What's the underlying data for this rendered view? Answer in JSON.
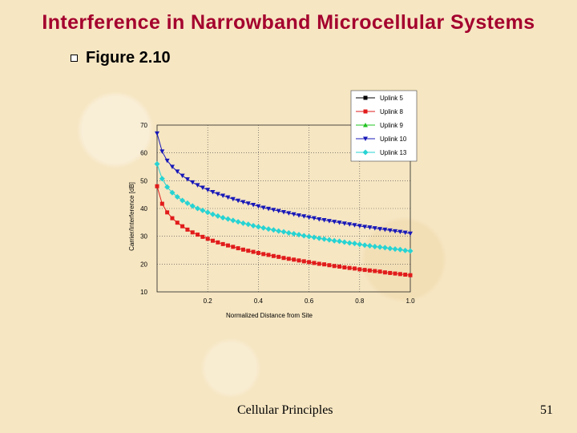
{
  "slide": {
    "title": "Interference in Narrowband Microcellular Systems",
    "bullet": "Figure 2.10",
    "footer": "Cellular Principles",
    "page_number": "51"
  },
  "chart_data": {
    "type": "line",
    "xlabel": "Normalized Distance from Site",
    "ylabel": "Carrier/Interference [dB]",
    "xlim": [
      0.0,
      1.0
    ],
    "ylim": [
      10,
      70
    ],
    "x_ticks": [
      0.2,
      0.4,
      0.6,
      0.8,
      1.0
    ],
    "x_tick_labels": [
      "0.2",
      "0.4",
      "0.6",
      "0.8",
      "1.0"
    ],
    "y_ticks": [
      10,
      20,
      30,
      40,
      50,
      60,
      70
    ],
    "y_tick_labels": [
      "10",
      "20",
      "30",
      "40",
      "50",
      "60",
      "70"
    ],
    "grid": true,
    "legend": "top-right",
    "x": [
      0.0,
      0.02,
      0.04,
      0.06,
      0.08,
      0.1,
      0.12,
      0.14,
      0.16,
      0.18,
      0.2,
      0.22,
      0.24,
      0.26,
      0.28,
      0.3,
      0.32,
      0.34,
      0.36,
      0.38,
      0.4,
      0.42,
      0.44,
      0.46,
      0.48,
      0.5,
      0.52,
      0.54,
      0.56,
      0.58,
      0.6,
      0.62,
      0.64,
      0.66,
      0.68,
      0.7,
      0.72,
      0.74,
      0.76,
      0.78,
      0.8,
      0.82,
      0.84,
      0.86,
      0.88,
      0.9,
      0.92,
      0.94,
      0.96,
      0.98,
      1.0
    ],
    "series": [
      {
        "name": "Uplink 5",
        "color": "#000000",
        "marker": "square",
        "values": [
          null,
          null,
          null,
          null,
          null,
          null,
          null,
          null,
          null,
          null,
          null,
          null,
          null,
          null,
          null,
          null,
          null,
          null,
          null,
          null,
          null,
          null,
          null,
          null,
          null,
          null,
          null,
          null,
          null,
          null,
          null,
          null,
          null,
          null,
          null,
          null,
          null,
          null,
          null,
          null,
          null,
          null,
          null,
          null,
          null,
          null,
          null,
          null,
          null,
          null,
          null
        ]
      },
      {
        "name": "Uplink 8",
        "color": "#e11b1b",
        "marker": "square",
        "values": [
          48.0,
          41.7,
          38.6,
          36.5,
          34.9,
          33.6,
          32.4,
          31.4,
          30.6,
          29.8,
          29.1,
          28.4,
          27.8,
          27.2,
          26.7,
          26.2,
          25.7,
          25.2,
          24.8,
          24.4,
          24.0,
          23.6,
          23.3,
          22.9,
          22.6,
          22.2,
          21.9,
          21.6,
          21.3,
          21.0,
          20.7,
          20.4,
          20.1,
          19.9,
          19.6,
          19.3,
          19.1,
          18.8,
          18.6,
          18.4,
          18.1,
          17.9,
          17.7,
          17.5,
          17.3,
          17.0,
          16.8,
          16.6,
          16.4,
          16.2,
          16.0
        ]
      },
      {
        "name": "Uplink 9",
        "color": "#22c322",
        "marker": "triangle-up",
        "values": [
          null,
          null,
          null,
          null,
          null,
          null,
          null,
          null,
          null,
          null,
          null,
          null,
          null,
          null,
          null,
          null,
          null,
          null,
          null,
          null,
          null,
          null,
          null,
          null,
          null,
          null,
          null,
          null,
          null,
          null,
          null,
          null,
          null,
          null,
          null,
          null,
          null,
          null,
          null,
          null,
          null,
          null,
          null,
          null,
          null,
          null,
          null,
          null,
          null,
          null,
          null
        ]
      },
      {
        "name": "Uplink 10",
        "color": "#1818b8",
        "marker": "triangle-down",
        "values": [
          67.0,
          60.5,
          57.2,
          55.0,
          53.3,
          51.8,
          50.5,
          49.4,
          48.4,
          47.5,
          46.7,
          45.9,
          45.2,
          44.6,
          44.0,
          43.4,
          42.8,
          42.3,
          41.8,
          41.3,
          40.8,
          40.3,
          39.9,
          39.5,
          39.1,
          38.7,
          38.3,
          37.9,
          37.5,
          37.2,
          36.8,
          36.5,
          36.1,
          35.8,
          35.5,
          35.2,
          34.9,
          34.6,
          34.3,
          34.0,
          33.7,
          33.4,
          33.2,
          32.9,
          32.6,
          32.4,
          32.1,
          31.8,
          31.6,
          31.3,
          31.0
        ]
      },
      {
        "name": "Uplink 13",
        "color": "#27d3d3",
        "marker": "diamond",
        "values": [
          56.0,
          50.7,
          47.7,
          45.7,
          44.2,
          42.9,
          41.9,
          40.9,
          40.0,
          39.3,
          38.6,
          37.9,
          37.3,
          36.7,
          36.2,
          35.7,
          35.2,
          34.7,
          34.3,
          33.8,
          33.4,
          33.0,
          32.6,
          32.3,
          31.9,
          31.6,
          31.2,
          30.9,
          30.6,
          30.2,
          29.9,
          29.6,
          29.3,
          29.0,
          28.7,
          28.4,
          28.2,
          27.9,
          27.6,
          27.4,
          27.1,
          26.8,
          26.6,
          26.3,
          26.1,
          25.9,
          25.6,
          25.4,
          25.2,
          24.9,
          24.7
        ]
      }
    ]
  }
}
